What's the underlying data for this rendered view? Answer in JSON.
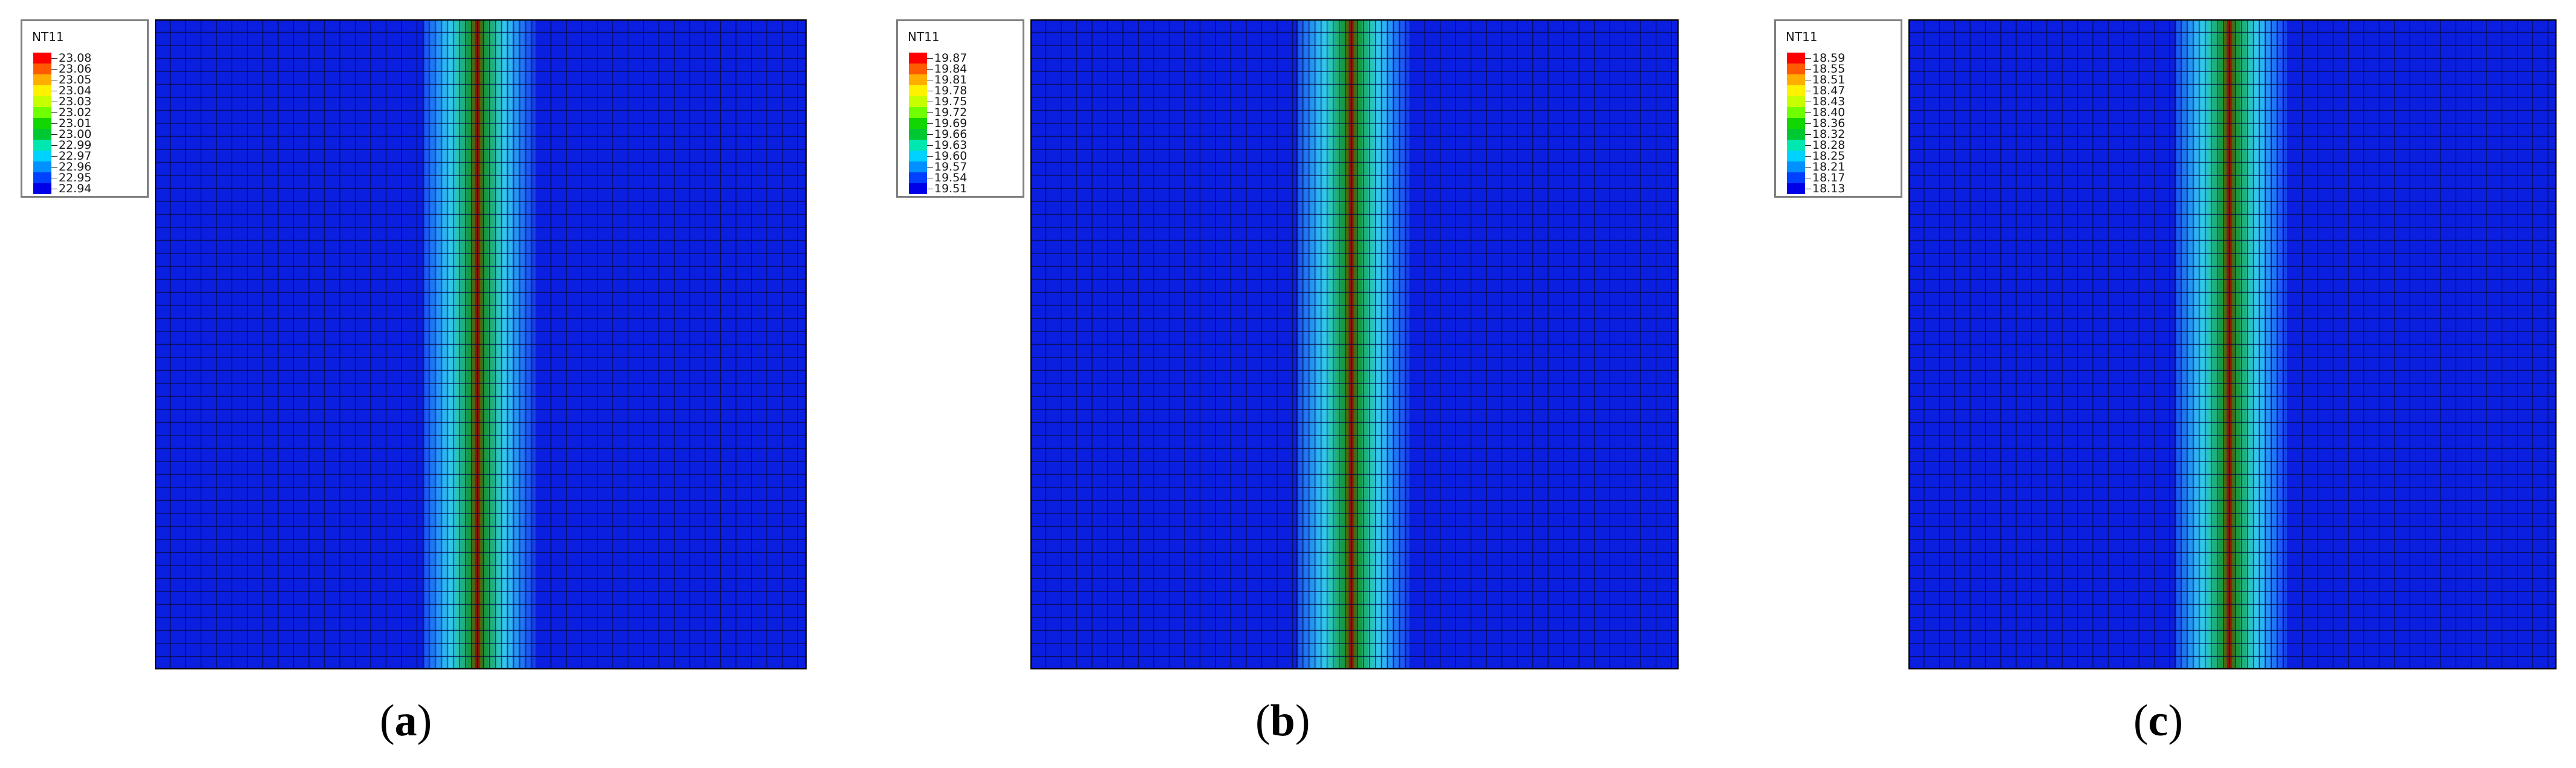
{
  "panels": [
    {
      "caption_letter": "a",
      "legend": {
        "title": "NT11",
        "labels": [
          "23.08",
          "23.06",
          "23.05",
          "23.04",
          "23.03",
          "23.02",
          "23.01",
          "23.00",
          "22.99",
          "22.97",
          "22.96",
          "22.95",
          "22.94"
        ]
      }
    },
    {
      "caption_letter": "b",
      "legend": {
        "title": "NT11",
        "labels": [
          "19.87",
          "19.84",
          "19.81",
          "19.78",
          "19.75",
          "19.72",
          "19.69",
          "19.66",
          "19.63",
          "19.60",
          "19.57",
          "19.54",
          "19.51"
        ]
      }
    },
    {
      "caption_letter": "c",
      "legend": {
        "title": "NT11",
        "labels": [
          "18.59",
          "18.55",
          "18.51",
          "18.47",
          "18.43",
          "18.40",
          "18.36",
          "18.32",
          "18.28",
          "18.25",
          "18.21",
          "18.17",
          "18.13"
        ]
      }
    }
  ],
  "colors": {
    "legend_scale": [
      "#ff0000",
      "#ff5a00",
      "#ffae00",
      "#fff200",
      "#c8ff00",
      "#6fff00",
      "#12d600",
      "#00c832",
      "#00e8b0",
      "#00d2ff",
      "#0090ff",
      "#0040ff",
      "#0000e8"
    ],
    "field_background": "#0a1fe0",
    "mesh_lines": "#0a0a3c",
    "hot_core": "#8b1a0a"
  }
}
